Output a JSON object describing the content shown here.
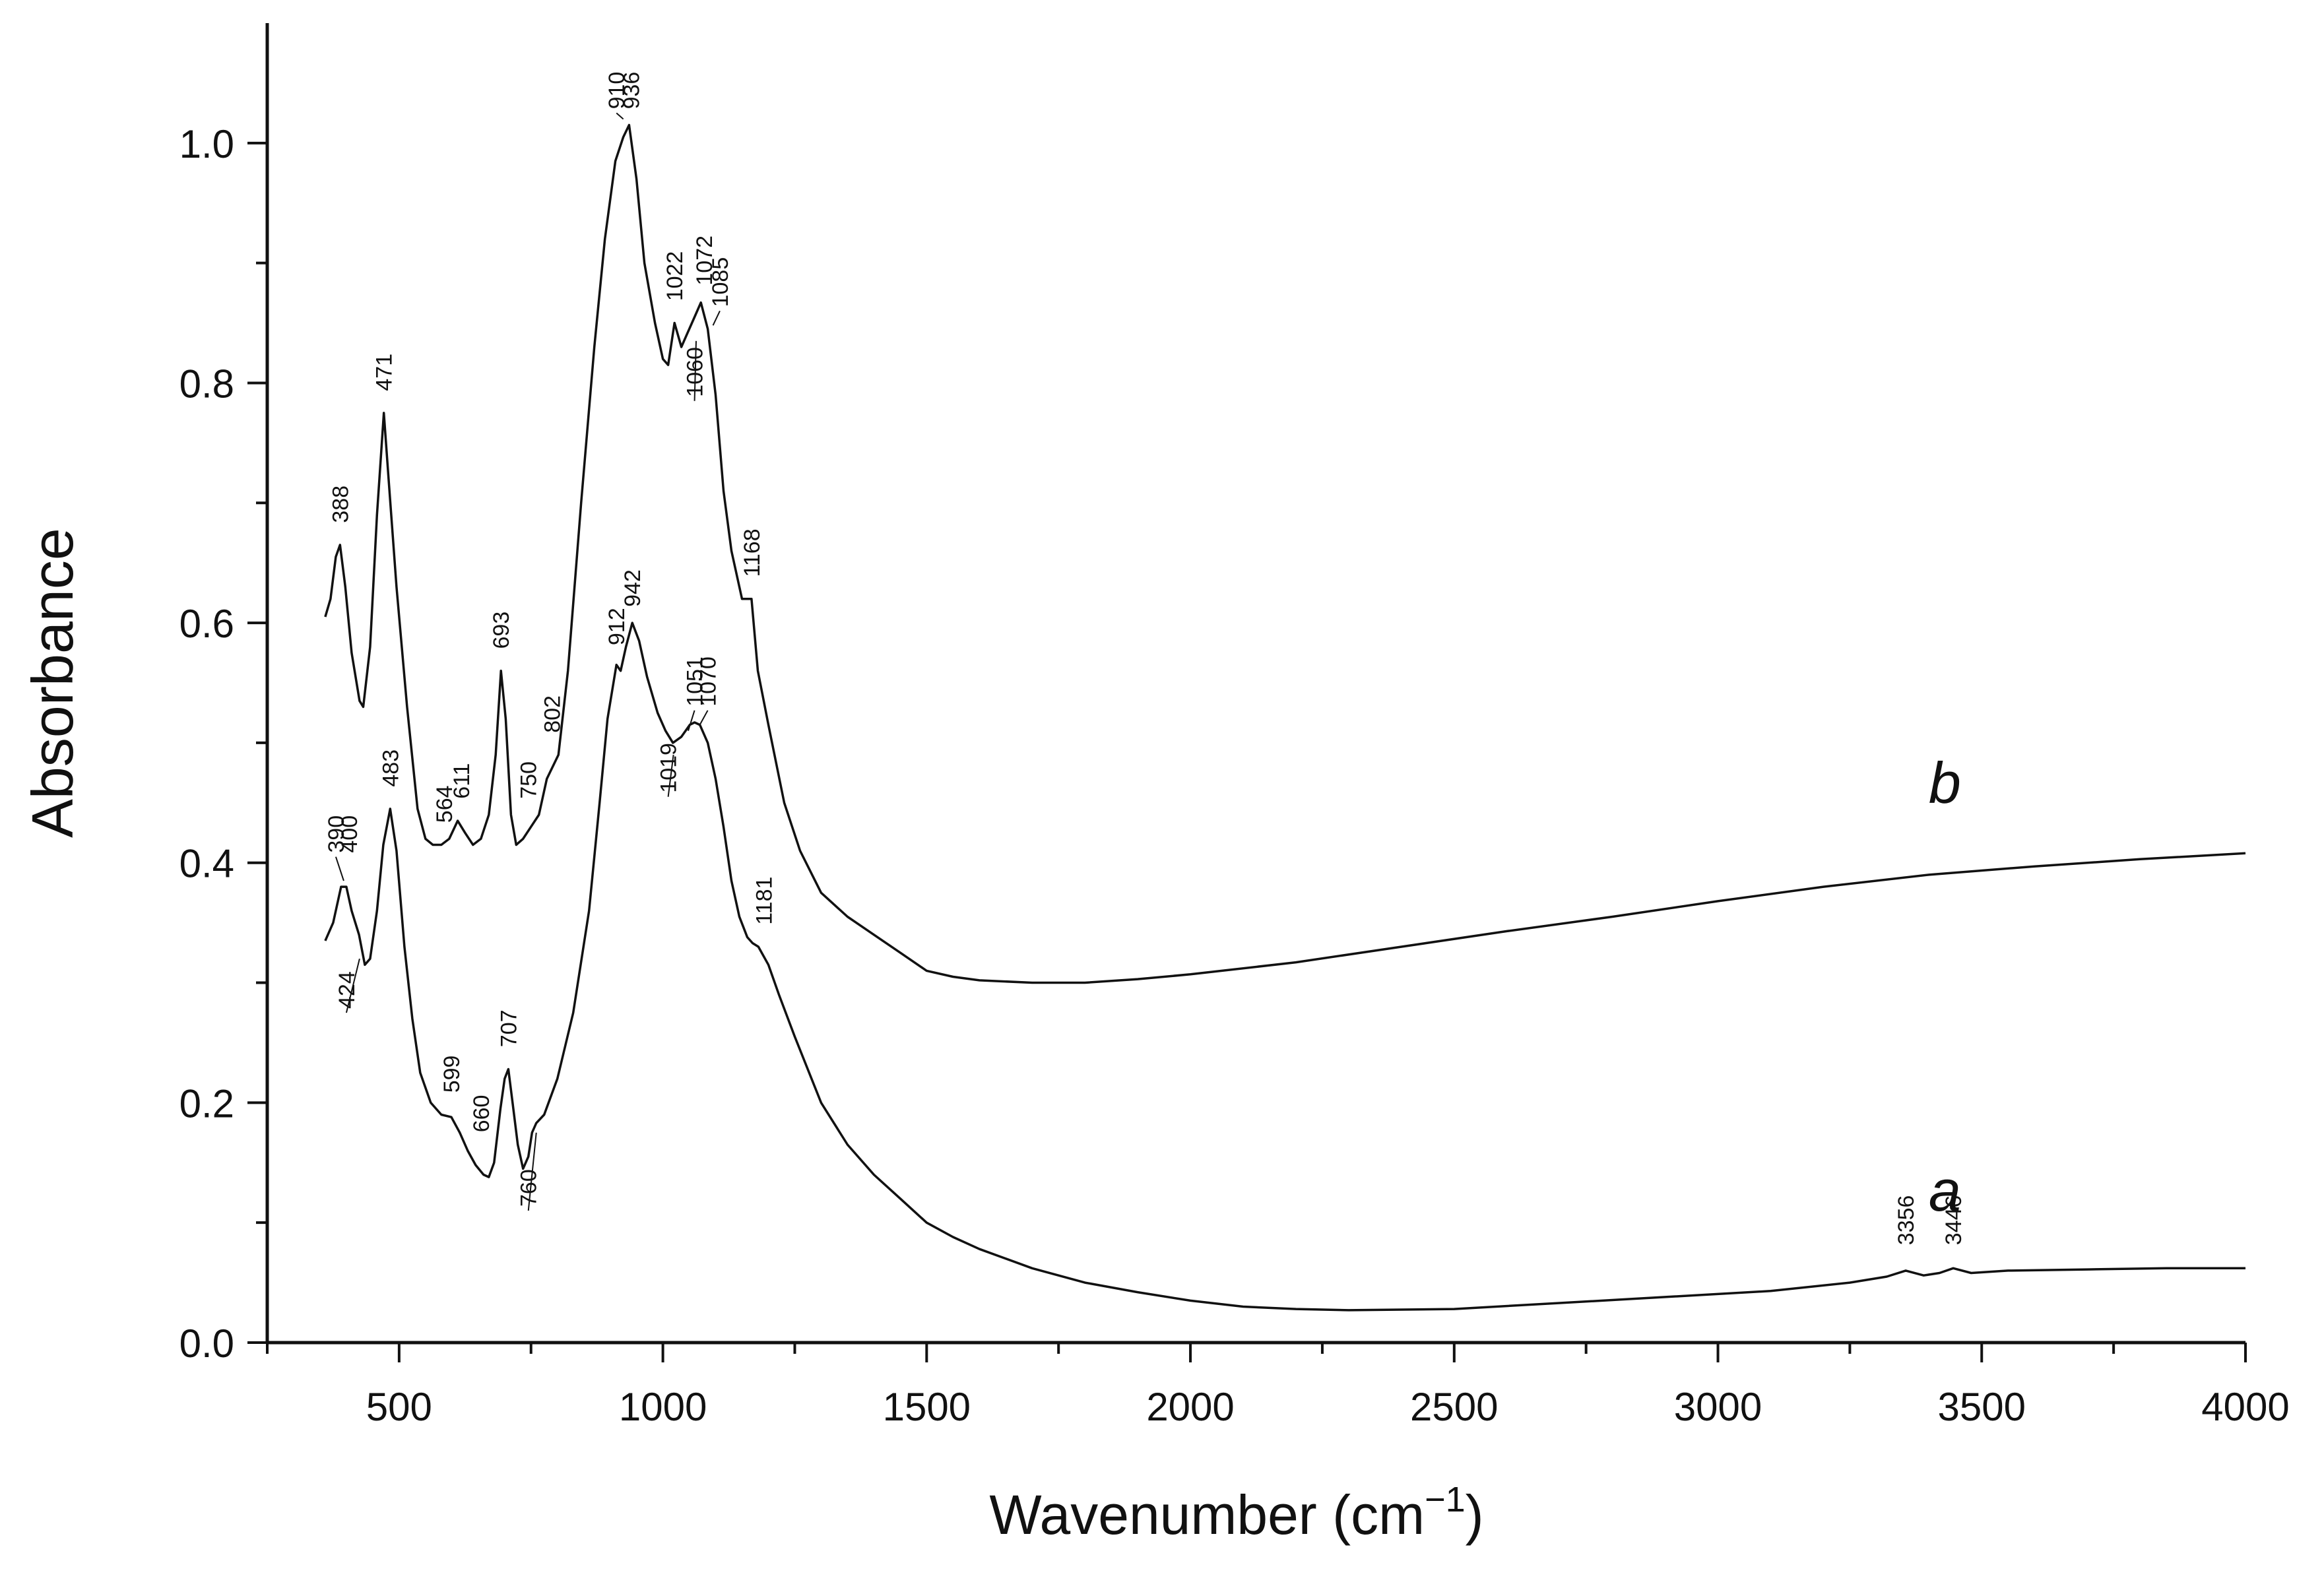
{
  "chart_data": {
    "type": "line",
    "title": "",
    "xlabel": "Wavenumber (cm",
    "xlabel_superscript": "−1",
    "xlabel_close": ")",
    "ylabel": "Absorbance",
    "xlim": [
      250,
      4000
    ],
    "ylim": [
      0,
      1.1
    ],
    "xticks": [
      500,
      1000,
      1500,
      2000,
      2500,
      3000,
      3500,
      4000
    ],
    "xticks_minor": [
      250,
      750,
      1250,
      1750,
      2250,
      2750,
      3250,
      3750
    ],
    "yticks": [
      0.0,
      0.2,
      0.4,
      0.6,
      0.8,
      1.0
    ],
    "yticks_minor": [
      0.1,
      0.3,
      0.5,
      0.7,
      0.9
    ],
    "series": [
      {
        "name": "a",
        "label": "a",
        "label_pos": [
          3430,
          0.11
        ],
        "points": [
          [
            360,
            0.335
          ],
          [
            375,
            0.35
          ],
          [
            390,
            0.38
          ],
          [
            400,
            0.38
          ],
          [
            410,
            0.36
          ],
          [
            424,
            0.34
          ],
          [
            435,
            0.315
          ],
          [
            445,
            0.32
          ],
          [
            458,
            0.36
          ],
          [
            470,
            0.415
          ],
          [
            483,
            0.445
          ],
          [
            495,
            0.41
          ],
          [
            510,
            0.33
          ],
          [
            525,
            0.27
          ],
          [
            540,
            0.225
          ],
          [
            560,
            0.2
          ],
          [
            580,
            0.19
          ],
          [
            599,
            0.188
          ],
          [
            615,
            0.175
          ],
          [
            630,
            0.16
          ],
          [
            645,
            0.148
          ],
          [
            660,
            0.14
          ],
          [
            670,
            0.138
          ],
          [
            680,
            0.15
          ],
          [
            692,
            0.195
          ],
          [
            700,
            0.22
          ],
          [
            707,
            0.228
          ],
          [
            715,
            0.2
          ],
          [
            725,
            0.165
          ],
          [
            735,
            0.145
          ],
          [
            745,
            0.155
          ],
          [
            752,
            0.175
          ],
          [
            760,
            0.183
          ],
          [
            775,
            0.19
          ],
          [
            800,
            0.22
          ],
          [
            830,
            0.275
          ],
          [
            860,
            0.36
          ],
          [
            880,
            0.45
          ],
          [
            895,
            0.52
          ],
          [
            912,
            0.565
          ],
          [
            920,
            0.56
          ],
          [
            930,
            0.58
          ],
          [
            942,
            0.6
          ],
          [
            955,
            0.585
          ],
          [
            970,
            0.555
          ],
          [
            990,
            0.525
          ],
          [
            1005,
            0.51
          ],
          [
            1019,
            0.5
          ],
          [
            1035,
            0.505
          ],
          [
            1051,
            0.515
          ],
          [
            1060,
            0.517
          ],
          [
            1070,
            0.515
          ],
          [
            1085,
            0.5
          ],
          [
            1100,
            0.47
          ],
          [
            1115,
            0.43
          ],
          [
            1130,
            0.385
          ],
          [
            1145,
            0.355
          ],
          [
            1160,
            0.338
          ],
          [
            1170,
            0.333
          ],
          [
            1181,
            0.33
          ],
          [
            1200,
            0.315
          ],
          [
            1220,
            0.29
          ],
          [
            1250,
            0.255
          ],
          [
            1300,
            0.2
          ],
          [
            1350,
            0.165
          ],
          [
            1400,
            0.14
          ],
          [
            1450,
            0.12
          ],
          [
            1500,
            0.1
          ],
          [
            1550,
            0.088
          ],
          [
            1600,
            0.078
          ],
          [
            1700,
            0.062
          ],
          [
            1800,
            0.05
          ],
          [
            1900,
            0.042
          ],
          [
            2000,
            0.035
          ],
          [
            2100,
            0.03
          ],
          [
            2200,
            0.028
          ],
          [
            2300,
            0.027
          ],
          [
            2500,
            0.028
          ],
          [
            2700,
            0.033
          ],
          [
            2900,
            0.038
          ],
          [
            3100,
            0.043
          ],
          [
            3250,
            0.05
          ],
          [
            3320,
            0.055
          ],
          [
            3356,
            0.06
          ],
          [
            3390,
            0.056
          ],
          [
            3420,
            0.058
          ],
          [
            3446,
            0.062
          ],
          [
            3480,
            0.058
          ],
          [
            3550,
            0.06
          ],
          [
            3700,
            0.061
          ],
          [
            3850,
            0.062
          ],
          [
            4000,
            0.062
          ]
        ]
      },
      {
        "name": "b",
        "label": "b",
        "label_pos": [
          3430,
          0.45
        ],
        "points": [
          [
            360,
            0.605
          ],
          [
            370,
            0.62
          ],
          [
            380,
            0.655
          ],
          [
            388,
            0.665
          ],
          [
            398,
            0.63
          ],
          [
            410,
            0.575
          ],
          [
            425,
            0.535
          ],
          [
            432,
            0.53
          ],
          [
            445,
            0.58
          ],
          [
            458,
            0.69
          ],
          [
            471,
            0.775
          ],
          [
            480,
            0.72
          ],
          [
            495,
            0.63
          ],
          [
            515,
            0.53
          ],
          [
            535,
            0.445
          ],
          [
            550,
            0.42
          ],
          [
            564,
            0.415
          ],
          [
            580,
            0.415
          ],
          [
            595,
            0.42
          ],
          [
            611,
            0.435
          ],
          [
            625,
            0.425
          ],
          [
            640,
            0.415
          ],
          [
            655,
            0.42
          ],
          [
            670,
            0.44
          ],
          [
            683,
            0.49
          ],
          [
            693,
            0.56
          ],
          [
            702,
            0.52
          ],
          [
            712,
            0.44
          ],
          [
            722,
            0.415
          ],
          [
            735,
            0.42
          ],
          [
            750,
            0.43
          ],
          [
            765,
            0.44
          ],
          [
            780,
            0.47
          ],
          [
            802,
            0.49
          ],
          [
            820,
            0.56
          ],
          [
            845,
            0.7
          ],
          [
            870,
            0.83
          ],
          [
            890,
            0.92
          ],
          [
            910,
            0.985
          ],
          [
            925,
            1.005
          ],
          [
            936,
            1.015
          ],
          [
            950,
            0.97
          ],
          [
            965,
            0.9
          ],
          [
            985,
            0.85
          ],
          [
            1000,
            0.82
          ],
          [
            1010,
            0.815
          ],
          [
            1022,
            0.85
          ],
          [
            1035,
            0.83
          ],
          [
            1045,
            0.84
          ],
          [
            1060,
            0.855
          ],
          [
            1072,
            0.867
          ],
          [
            1085,
            0.845
          ],
          [
            1100,
            0.79
          ],
          [
            1115,
            0.71
          ],
          [
            1130,
            0.66
          ],
          [
            1150,
            0.62
          ],
          [
            1168,
            0.62
          ],
          [
            1180,
            0.56
          ],
          [
            1200,
            0.515
          ],
          [
            1230,
            0.45
          ],
          [
            1260,
            0.41
          ],
          [
            1300,
            0.375
          ],
          [
            1350,
            0.355
          ],
          [
            1400,
            0.34
          ],
          [
            1450,
            0.325
          ],
          [
            1500,
            0.31
          ],
          [
            1550,
            0.305
          ],
          [
            1600,
            0.302
          ],
          [
            1700,
            0.3
          ],
          [
            1800,
            0.3
          ],
          [
            1900,
            0.303
          ],
          [
            2000,
            0.307
          ],
          [
            2200,
            0.317
          ],
          [
            2400,
            0.33
          ],
          [
            2600,
            0.343
          ],
          [
            2800,
            0.355
          ],
          [
            3000,
            0.368
          ],
          [
            3200,
            0.38
          ],
          [
            3400,
            0.39
          ],
          [
            3600,
            0.397
          ],
          [
            3800,
            0.403
          ],
          [
            4000,
            0.408
          ]
        ]
      }
    ],
    "annotations": [
      {
        "text": "388",
        "x": 388,
        "y": 0.68,
        "lx": 388,
        "ly": 0.68,
        "leader": false
      },
      {
        "text": "471",
        "x": 471,
        "y": 0.79,
        "lx": 471,
        "ly": 0.79,
        "leader": false
      },
      {
        "text": "564",
        "x": 585,
        "y": 0.43,
        "lx": 585,
        "ly": 0.43,
        "leader": false
      },
      {
        "text": "611",
        "x": 618,
        "y": 0.45,
        "lx": 618,
        "ly": 0.45,
        "leader": false
      },
      {
        "text": "693",
        "x": 693,
        "y": 0.575,
        "lx": 693,
        "ly": 0.575,
        "leader": false
      },
      {
        "text": "750",
        "x": 745,
        "y": 0.45,
        "lx": 745,
        "ly": 0.45,
        "leader": false
      },
      {
        "text": "802",
        "x": 790,
        "y": 0.505,
        "lx": 790,
        "ly": 0.505,
        "leader": false
      },
      {
        "text": "910",
        "x": 912,
        "y": 1.025,
        "lx": 925,
        "ly": 1.02,
        "leader": true
      },
      {
        "text": "936",
        "x": 940,
        "y": 1.025,
        "lx": 940,
        "ly": 1.025,
        "leader": false
      },
      {
        "text": "1022",
        "x": 1022,
        "y": 0.865,
        "lx": 1022,
        "ly": 0.865,
        "leader": false
      },
      {
        "text": "1060",
        "x": 1060,
        "y": 0.785,
        "lx": 1063,
        "ly": 0.835,
        "leader": true
      },
      {
        "text": "1072",
        "x": 1078,
        "y": 0.878,
        "lx": 1078,
        "ly": 0.878,
        "leader": false
      },
      {
        "text": "1085",
        "x": 1108,
        "y": 0.86,
        "lx": 1095,
        "ly": 0.848,
        "leader": true
      },
      {
        "text": "1168",
        "x": 1168,
        "y": 0.635,
        "lx": 1168,
        "ly": 0.635,
        "leader": false
      },
      {
        "text": "912",
        "x": 912,
        "y": 0.578,
        "lx": 912,
        "ly": 0.578,
        "leader": false
      },
      {
        "text": "942",
        "x": 942,
        "y": 0.61,
        "lx": 942,
        "ly": 0.61,
        "leader": false
      },
      {
        "text": "1019",
        "x": 1010,
        "y": 0.455,
        "lx": 1020,
        "ly": 0.49,
        "leader": true
      },
      {
        "text": "1051",
        "x": 1060,
        "y": 0.527,
        "lx": 1048,
        "ly": 0.51,
        "leader": true
      },
      {
        "text": "1070",
        "x": 1085,
        "y": 0.527,
        "lx": 1070,
        "ly": 0.515,
        "leader": true
      },
      {
        "text": "1181",
        "x": 1191,
        "y": 0.345,
        "lx": 1191,
        "ly": 0.345,
        "leader": false
      },
      {
        "text": "390",
        "x": 380,
        "y": 0.405,
        "lx": 395,
        "ly": 0.385,
        "leader": true
      },
      {
        "text": "400",
        "x": 405,
        "y": 0.405,
        "lx": 405,
        "ly": 0.405,
        "leader": false
      },
      {
        "text": "483",
        "x": 483,
        "y": 0.46,
        "lx": 483,
        "ly": 0.46,
        "leader": false
      },
      {
        "text": "424",
        "x": 400,
        "y": 0.275,
        "lx": 425,
        "ly": 0.32,
        "leader": true
      },
      {
        "text": "599",
        "x": 599,
        "y": 0.205,
        "lx": 599,
        "ly": 0.205,
        "leader": false
      },
      {
        "text": "660",
        "x": 655,
        "y": 0.172,
        "lx": 655,
        "ly": 0.172,
        "leader": false
      },
      {
        "text": "707",
        "x": 707,
        "y": 0.243,
        "lx": 707,
        "ly": 0.243,
        "leader": false
      },
      {
        "text": "760",
        "x": 745,
        "y": 0.11,
        "lx": 760,
        "ly": 0.175,
        "leader": true
      },
      {
        "text": "3356",
        "x": 3356,
        "y": 0.078,
        "lx": 3356,
        "ly": 0.078,
        "leader": false
      },
      {
        "text": "3446",
        "x": 3446,
        "y": 0.078,
        "lx": 3446,
        "ly": 0.078,
        "leader": false
      }
    ]
  }
}
